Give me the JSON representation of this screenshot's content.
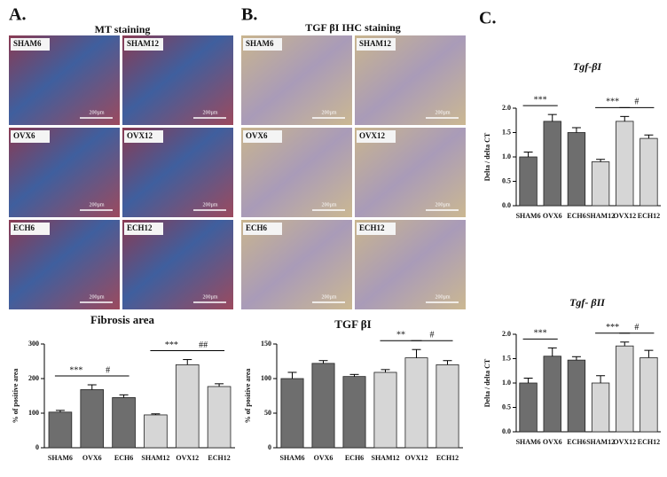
{
  "panels": [
    {
      "label": "A.",
      "title": "MT staining",
      "images": [
        "SHAM6",
        "SHAM12",
        "OVX6",
        "OVX12",
        "ECH6",
        "ECH12"
      ],
      "scale_bar": "200µm"
    },
    {
      "label": "B.",
      "title": "TGF βI IHC staining",
      "images": [
        "SHAM6",
        "SHAM12",
        "OVX6",
        "OVX12",
        "ECH6",
        "ECH12"
      ],
      "scale_bar": "200µm"
    },
    {
      "label": "C."
    }
  ],
  "chart_data": [
    {
      "type": "bar",
      "title": "Fibrosis area",
      "y_label": "% of positive area",
      "categories": [
        "SHAM6",
        "OVX6",
        "ECH6",
        "SHAM12",
        "OVX12",
        "ECH12"
      ],
      "values": [
        103,
        168,
        145,
        95,
        240,
        177
      ],
      "errors": [
        5,
        14,
        8,
        3,
        15,
        8
      ],
      "colors": [
        "#6e6e6e",
        "#6e6e6e",
        "#6e6e6e",
        "#d6d6d6",
        "#d6d6d6",
        "#d6d6d6"
      ],
      "ylim": [
        0,
        300
      ],
      "yticks": [
        0,
        100,
        200,
        300
      ],
      "annotations": [
        {
          "label": "***",
          "from": "SHAM6",
          "to": "OVX6"
        },
        {
          "label": "#",
          "from": "OVX6",
          "to": "ECH6"
        },
        {
          "label": "***",
          "from": "SHAM12",
          "to": "OVX12"
        },
        {
          "label": "##",
          "from": "OVX12",
          "to": "ECH12"
        }
      ]
    },
    {
      "type": "bar",
      "title": "TGF βI",
      "y_label": "% of positive area",
      "categories": [
        "SHAM6",
        "OVX6",
        "ECH6",
        "SHAM12",
        "OVX12",
        "ECH12"
      ],
      "values": [
        100,
        122,
        103,
        109,
        130,
        120
      ],
      "errors": [
        9,
        4,
        3,
        4,
        12,
        6
      ],
      "colors": [
        "#6e6e6e",
        "#6e6e6e",
        "#6e6e6e",
        "#d6d6d6",
        "#d6d6d6",
        "#d6d6d6"
      ],
      "ylim": [
        0,
        150
      ],
      "yticks": [
        0,
        50,
        100,
        150
      ],
      "annotations": [
        {
          "label": "**",
          "from": "SHAM12",
          "to": "OVX12"
        },
        {
          "label": "#",
          "from": "OVX12",
          "to": "ECH12"
        }
      ]
    },
    {
      "type": "bar",
      "title": "Tgf-βI",
      "y_label": "Delta / delta CT",
      "categories": [
        "SHAM6",
        "OVX6",
        "ECH6",
        "SHAM12",
        "OVX12",
        "ECH12"
      ],
      "values": [
        1.0,
        1.73,
        1.5,
        0.9,
        1.73,
        1.38
      ],
      "errors": [
        0.1,
        0.14,
        0.1,
        0.05,
        0.1,
        0.07
      ],
      "colors": [
        "#6e6e6e",
        "#6e6e6e",
        "#6e6e6e",
        "#d6d6d6",
        "#d6d6d6",
        "#d6d6d6"
      ],
      "ylim": [
        0,
        2
      ],
      "yticks": [
        {
          "value": 0,
          "label": "0.0"
        },
        0.5,
        {
          "value": 1,
          "label": "1.0"
        },
        1.5,
        {
          "value": 2,
          "label": "2.0"
        }
      ],
      "annotations": [
        {
          "label": "***",
          "from": "SHAM6",
          "to": "OVX6"
        },
        {
          "label": "***",
          "from": "SHAM12",
          "to": "OVX12"
        },
        {
          "label": "#",
          "from": "OVX12",
          "to": "ECH12"
        }
      ]
    },
    {
      "type": "bar",
      "title": "Tgf- βII",
      "y_label": "Delta / delta CT",
      "categories": [
        "SHAM6",
        "OVX6",
        "ECH6",
        "SHAM12",
        "OVX12",
        "ECH12"
      ],
      "values": [
        1.0,
        1.55,
        1.47,
        1.0,
        1.76,
        1.52
      ],
      "errors": [
        0.1,
        0.17,
        0.07,
        0.15,
        0.08,
        0.15
      ],
      "colors": [
        "#6e6e6e",
        "#6e6e6e",
        "#6e6e6e",
        "#d6d6d6",
        "#d6d6d6",
        "#d6d6d6"
      ],
      "ylim": [
        0,
        2
      ],
      "yticks": [
        {
          "value": 0,
          "label": "0.0"
        },
        0.5,
        {
          "value": 1,
          "label": "1.0"
        },
        1.5,
        {
          "value": 2,
          "label": "2.0"
        }
      ],
      "annotations": [
        {
          "label": "***",
          "from": "SHAM6",
          "to": "OVX6"
        },
        {
          "label": "***",
          "from": "SHAM12",
          "to": "OVX12"
        },
        {
          "label": "#",
          "from": "OVX12",
          "to": "ECH12"
        }
      ]
    }
  ]
}
